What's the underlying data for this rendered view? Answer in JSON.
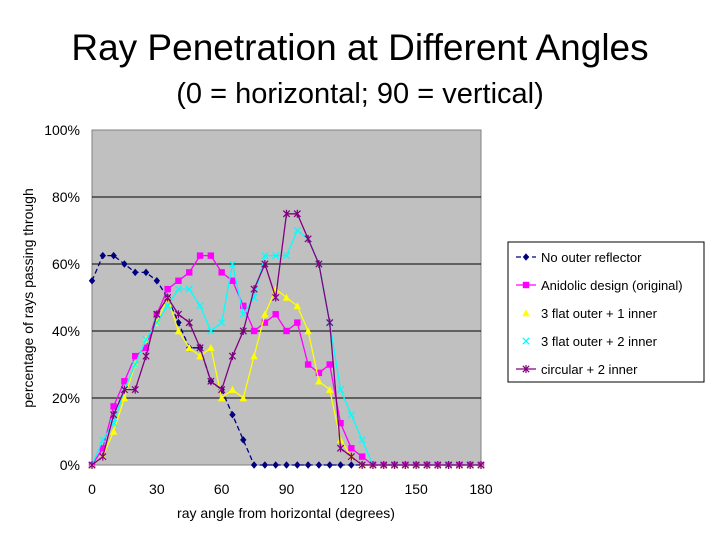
{
  "slide": {
    "title": "Ray Penetration at Different Angles",
    "subtitle": "(0 = horizontal; 90 = vertical)"
  },
  "chart_data": {
    "type": "line",
    "xlabel": "ray angle from horizontal (degrees)",
    "ylabel": "percentage of rays passing through",
    "xlim": [
      0,
      180
    ],
    "ylim": [
      0,
      1
    ],
    "xticks": [
      0,
      30,
      60,
      90,
      120,
      150,
      180
    ],
    "xtick_labels": [
      "0",
      "30",
      "60",
      "90",
      "120",
      "150",
      "180"
    ],
    "yticks": [
      0,
      0.2,
      0.4,
      0.6,
      0.8,
      1.0
    ],
    "ytick_labels": [
      "0%",
      "20%",
      "40%",
      "60%",
      "80%",
      "100%"
    ],
    "grid": "horizontal",
    "legend_position": "right",
    "plot_background": "#c0c0c0",
    "x": [
      0,
      5,
      10,
      15,
      20,
      25,
      30,
      35,
      40,
      45,
      50,
      55,
      60,
      65,
      70,
      75,
      80,
      85,
      90,
      95,
      100,
      105,
      110,
      115,
      120,
      125,
      130,
      135,
      140,
      145,
      150,
      155,
      160,
      165,
      170,
      175,
      180
    ],
    "series": [
      {
        "name": "No outer reflector",
        "color": "#000080",
        "marker": "diamond",
        "line": "dash",
        "values": [
          0.55,
          0.625,
          0.625,
          0.6,
          0.575,
          0.575,
          0.55,
          0.5,
          0.425,
          0.35,
          0.35,
          0.25,
          0.225,
          0.15,
          0.075,
          0,
          0,
          0,
          0,
          0,
          0,
          0,
          0,
          0,
          0,
          0,
          0,
          0,
          0,
          0,
          0,
          0,
          0,
          0,
          0,
          0,
          0
        ]
      },
      {
        "name": "Anidolic design (original)",
        "color": "#ff00ff",
        "marker": "square",
        "line": "solid",
        "values": [
          0,
          0.05,
          0.175,
          0.25,
          0.325,
          0.35,
          0.45,
          0.525,
          0.55,
          0.575,
          0.625,
          0.625,
          0.575,
          0.55,
          0.475,
          0.4,
          0.425,
          0.45,
          0.4,
          0.425,
          0.3,
          0.275,
          0.3,
          0.125,
          0.05,
          0.025,
          0,
          0,
          0,
          0,
          0,
          0,
          0,
          0,
          0,
          0,
          0
        ]
      },
      {
        "name": "3 flat outer + 1 inner",
        "color": "#ffff00",
        "marker": "triangle",
        "line": "solid",
        "values": [
          0,
          0.025,
          0.1,
          0.2,
          0.3,
          0.375,
          0.425,
          0.5,
          0.4,
          0.35,
          0.325,
          0.35,
          0.2,
          0.225,
          0.2,
          0.325,
          0.45,
          0.525,
          0.5,
          0.475,
          0.4,
          0.25,
          0.225,
          0.075,
          0.025,
          0,
          0,
          0,
          0,
          0,
          0,
          0,
          0,
          0,
          0,
          0,
          0
        ]
      },
      {
        "name": "3 flat outer + 2 inner",
        "color": "#00ffff",
        "marker": "x",
        "line": "solid",
        "values": [
          0,
          0.075,
          0.125,
          0.225,
          0.3,
          0.375,
          0.425,
          0.475,
          0.525,
          0.525,
          0.475,
          0.4,
          0.425,
          0.6,
          0.45,
          0.5,
          0.625,
          0.625,
          0.625,
          0.7,
          0.675,
          0.6,
          0.425,
          0.225,
          0.15,
          0.075,
          0,
          0,
          0,
          0,
          0,
          0,
          0,
          0,
          0,
          0,
          0
        ]
      },
      {
        "name": "circular + 2 inner",
        "color": "#800080",
        "marker": "star",
        "line": "solid",
        "values": [
          0,
          0.025,
          0.15,
          0.225,
          0.225,
          0.325,
          0.45,
          0.5,
          0.45,
          0.425,
          0.35,
          0.25,
          0.225,
          0.325,
          0.4,
          0.525,
          0.6,
          0.5,
          0.75,
          0.75,
          0.675,
          0.6,
          0.425,
          0.05,
          0.025,
          0,
          0,
          0,
          0,
          0,
          0,
          0,
          0,
          0,
          0,
          0,
          0
        ]
      }
    ]
  }
}
